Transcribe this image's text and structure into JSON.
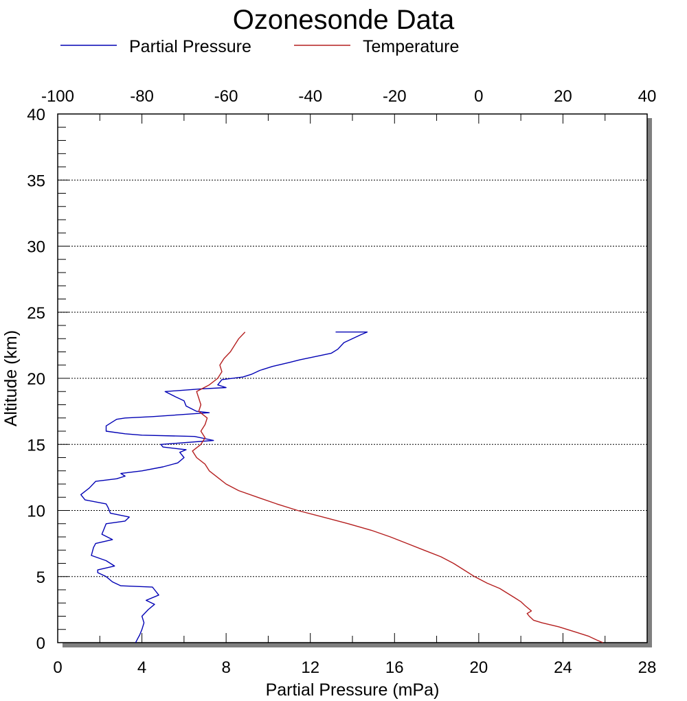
{
  "chart_data": {
    "type": "line",
    "title": "Ozonesonde Data",
    "xlabel": "Partial Pressure (mPa)",
    "ylabel": "Altitude (km)",
    "xlim": [
      0,
      28
    ],
    "ylim": [
      0,
      40
    ],
    "x2lim": [
      -100,
      40
    ],
    "x_ticks": [
      "0",
      "4",
      "8",
      "12",
      "16",
      "20",
      "24",
      "28"
    ],
    "x2_ticks": [
      "-100",
      "-80",
      "-60",
      "-40",
      "-20",
      "0",
      "20",
      "40"
    ],
    "y_ticks": [
      "0",
      "5",
      "10",
      "15",
      "20",
      "25",
      "30",
      "35",
      "40"
    ],
    "grid_y": [
      5,
      10,
      15,
      20,
      25,
      30,
      35
    ],
    "legend_position": "top",
    "series": [
      {
        "name": "Partial Pressure",
        "axis": "bottom",
        "color": "#0000b4",
        "points": [
          [
            3.7,
            0
          ],
          [
            3.8,
            0.3
          ],
          [
            3.9,
            0.6
          ],
          [
            4.0,
            1.0
          ],
          [
            4.1,
            1.5
          ],
          [
            4.0,
            2.0
          ],
          [
            4.3,
            2.5
          ],
          [
            4.6,
            2.9
          ],
          [
            4.2,
            3.2
          ],
          [
            4.8,
            3.6
          ],
          [
            4.6,
            4.0
          ],
          [
            4.5,
            4.2
          ],
          [
            3.0,
            4.3
          ],
          [
            2.6,
            4.6
          ],
          [
            2.3,
            5.0
          ],
          [
            1.9,
            5.3
          ],
          [
            1.9,
            5.5
          ],
          [
            2.7,
            5.8
          ],
          [
            2.3,
            6.2
          ],
          [
            1.6,
            6.6
          ],
          [
            1.7,
            7.2
          ],
          [
            1.8,
            7.5
          ],
          [
            2.6,
            7.8
          ],
          [
            2.1,
            8.2
          ],
          [
            2.2,
            8.6
          ],
          [
            2.3,
            9.0
          ],
          [
            3.2,
            9.2
          ],
          [
            3.4,
            9.5
          ],
          [
            2.5,
            9.8
          ],
          [
            2.4,
            10.2
          ],
          [
            2.3,
            10.5
          ],
          [
            1.3,
            10.8
          ],
          [
            1.1,
            11.2
          ],
          [
            1.5,
            11.7
          ],
          [
            1.8,
            12.2
          ],
          [
            2.8,
            12.4
          ],
          [
            3.2,
            12.6
          ],
          [
            3.0,
            12.8
          ],
          [
            4.0,
            13.0
          ],
          [
            5.0,
            13.3
          ],
          [
            5.7,
            13.6
          ],
          [
            6.0,
            14.0
          ],
          [
            5.8,
            14.4
          ],
          [
            6.1,
            14.6
          ],
          [
            5.0,
            14.8
          ],
          [
            4.9,
            15.0
          ],
          [
            7.4,
            15.3
          ],
          [
            6.5,
            15.6
          ],
          [
            4.0,
            15.7
          ],
          [
            3.2,
            15.8
          ],
          [
            2.3,
            16.0
          ],
          [
            2.3,
            16.4
          ],
          [
            2.8,
            16.9
          ],
          [
            3.2,
            17.0
          ],
          [
            4.5,
            17.1
          ],
          [
            7.2,
            17.4
          ],
          [
            6.6,
            17.5
          ],
          [
            6.1,
            17.9
          ],
          [
            6.0,
            18.3
          ],
          [
            5.6,
            18.6
          ],
          [
            5.1,
            19.0
          ],
          [
            6.8,
            19.2
          ],
          [
            8.0,
            19.3
          ],
          [
            7.6,
            19.5
          ],
          [
            7.8,
            19.9
          ],
          [
            8.8,
            20.1
          ],
          [
            9.2,
            20.3
          ],
          [
            9.6,
            20.6
          ],
          [
            10.2,
            20.9
          ],
          [
            11.0,
            21.2
          ],
          [
            11.5,
            21.4
          ],
          [
            12.4,
            21.7
          ],
          [
            13.0,
            21.9
          ],
          [
            13.3,
            22.2
          ],
          [
            13.6,
            22.7
          ],
          [
            14.0,
            23.0
          ],
          [
            14.4,
            23.3
          ],
          [
            14.7,
            23.5
          ],
          [
            13.2,
            23.5
          ]
        ]
      },
      {
        "name": "Temperature",
        "axis": "top",
        "color": "#b41e1e",
        "points": [
          [
            29.5,
            0
          ],
          [
            28.0,
            0.2
          ],
          [
            26.0,
            0.5
          ],
          [
            23.0,
            0.8
          ],
          [
            19.0,
            1.2
          ],
          [
            15.0,
            1.5
          ],
          [
            13.0,
            1.7
          ],
          [
            12.0,
            2.0
          ],
          [
            11.5,
            2.2
          ],
          [
            12.5,
            2.4
          ],
          [
            11.0,
            2.8
          ],
          [
            10.0,
            3.1
          ],
          [
            8.5,
            3.4
          ],
          [
            6.5,
            3.8
          ],
          [
            5.0,
            4.1
          ],
          [
            2.0,
            4.5
          ],
          [
            -1.0,
            5.0
          ],
          [
            -3.5,
            5.5
          ],
          [
            -6.0,
            6.0
          ],
          [
            -9.0,
            6.5
          ],
          [
            -13.0,
            7.0
          ],
          [
            -17.0,
            7.5
          ],
          [
            -21.0,
            8.0
          ],
          [
            -25.5,
            8.5
          ],
          [
            -31.0,
            9.0
          ],
          [
            -37.0,
            9.5
          ],
          [
            -43.0,
            10.0
          ],
          [
            -48.0,
            10.5
          ],
          [
            -52.5,
            11.0
          ],
          [
            -57.0,
            11.5
          ],
          [
            -60.0,
            12.0
          ],
          [
            -62.0,
            12.5
          ],
          [
            -64.0,
            13.0
          ],
          [
            -65.0,
            13.5
          ],
          [
            -67.0,
            14.0
          ],
          [
            -68.0,
            14.5
          ],
          [
            -66.0,
            15.0
          ],
          [
            -65.0,
            15.5
          ],
          [
            -66.0,
            16.0
          ],
          [
            -65.0,
            16.5
          ],
          [
            -64.5,
            17.0
          ],
          [
            -66.5,
            17.5
          ],
          [
            -66.0,
            18.0
          ],
          [
            -66.5,
            18.5
          ],
          [
            -67.0,
            19.0
          ],
          [
            -64.0,
            19.5
          ],
          [
            -62.0,
            20.0
          ],
          [
            -61.0,
            20.5
          ],
          [
            -61.5,
            21.0
          ],
          [
            -60.5,
            21.5
          ],
          [
            -59.0,
            22.0
          ],
          [
            -58.0,
            22.5
          ],
          [
            -57.0,
            23.0
          ],
          [
            -55.5,
            23.5
          ]
        ]
      }
    ]
  }
}
